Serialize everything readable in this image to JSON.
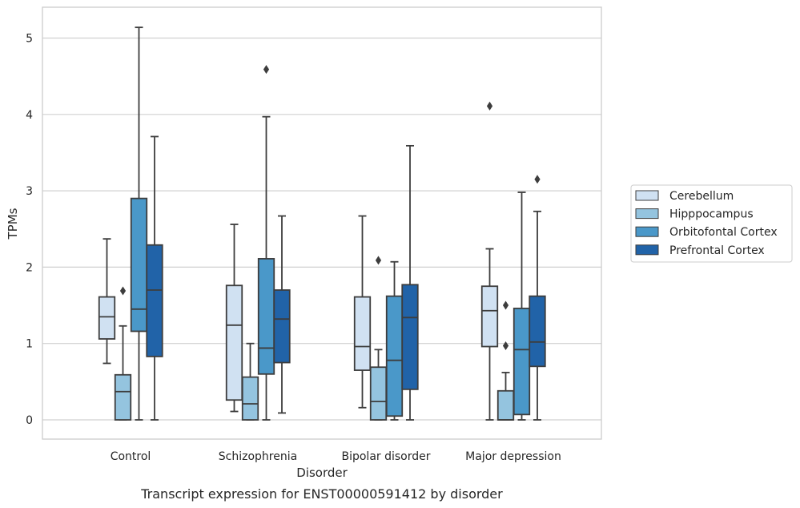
{
  "chart_data": {
    "type": "box",
    "title": "Transcript expression for ENST00000591412 by disorder",
    "xlabel": "Disorder",
    "ylabel": "TPMs",
    "ylim": [
      -0.25,
      5.4
    ],
    "yticks": [
      0,
      1,
      2,
      3,
      4,
      5
    ],
    "grid": true,
    "legend_position": "right",
    "categories": [
      "Control",
      "Schizophrenia",
      "Bipolar disorder",
      "Major depression"
    ],
    "series": [
      {
        "name": "Cerebellum",
        "color": "#d0e1f2",
        "boxes": [
          {
            "whisker_low": 0.74,
            "q1": 1.06,
            "median": 1.35,
            "q3": 1.61,
            "whisker_high": 2.37,
            "outliers": []
          },
          {
            "whisker_low": 0.11,
            "q1": 0.26,
            "median": 1.24,
            "q3": 1.76,
            "whisker_high": 2.56,
            "outliers": []
          },
          {
            "whisker_low": 0.16,
            "q1": 0.65,
            "median": 0.96,
            "q3": 1.61,
            "whisker_high": 2.67,
            "outliers": []
          },
          {
            "whisker_low": 0.0,
            "q1": 0.96,
            "median": 1.43,
            "q3": 1.75,
            "whisker_high": 2.24,
            "outliers": [
              4.11
            ]
          }
        ]
      },
      {
        "name": "Hipppocampus",
        "color": "#94c4df",
        "boxes": [
          {
            "whisker_low": 0.0,
            "q1": 0.0,
            "median": 0.37,
            "q3": 0.59,
            "whisker_high": 1.23,
            "outliers": [
              1.69
            ]
          },
          {
            "whisker_low": 0.0,
            "q1": 0.0,
            "median": 0.21,
            "q3": 0.56,
            "whisker_high": 1.0,
            "outliers": []
          },
          {
            "whisker_low": 0.0,
            "q1": 0.0,
            "median": 0.24,
            "q3": 0.69,
            "whisker_high": 0.92,
            "outliers": [
              2.09
            ]
          },
          {
            "whisker_low": 0.0,
            "q1": 0.0,
            "median": 0.0,
            "q3": 0.38,
            "whisker_high": 0.62,
            "outliers": [
              0.97,
              1.5
            ]
          }
        ]
      },
      {
        "name": "Orbitofontal Cortex",
        "color": "#4a98c9",
        "boxes": [
          {
            "whisker_low": 0.0,
            "q1": 1.16,
            "median": 1.45,
            "q3": 2.9,
            "whisker_high": 5.14,
            "outliers": []
          },
          {
            "whisker_low": 0.0,
            "q1": 0.6,
            "median": 0.94,
            "q3": 2.11,
            "whisker_high": 3.97,
            "outliers": [
              4.59
            ]
          },
          {
            "whisker_low": 0.0,
            "q1": 0.05,
            "median": 0.78,
            "q3": 1.62,
            "whisker_high": 2.07,
            "outliers": []
          },
          {
            "whisker_low": 0.0,
            "q1": 0.07,
            "median": 0.92,
            "q3": 1.46,
            "whisker_high": 2.98,
            "outliers": []
          }
        ]
      },
      {
        "name": "Prefrontal Cortex",
        "color": "#2163a8",
        "boxes": [
          {
            "whisker_low": 0.0,
            "q1": 0.83,
            "median": 1.7,
            "q3": 2.29,
            "whisker_high": 3.71,
            "outliers": []
          },
          {
            "whisker_low": 0.09,
            "q1": 0.75,
            "median": 1.32,
            "q3": 1.7,
            "whisker_high": 2.67,
            "outliers": []
          },
          {
            "whisker_low": 0.0,
            "q1": 0.4,
            "median": 1.34,
            "q3": 1.77,
            "whisker_high": 3.59,
            "outliers": []
          },
          {
            "whisker_low": 0.0,
            "q1": 0.7,
            "median": 1.02,
            "q3": 1.62,
            "whisker_high": 2.73,
            "outliers": [
              3.15
            ]
          }
        ]
      }
    ]
  }
}
